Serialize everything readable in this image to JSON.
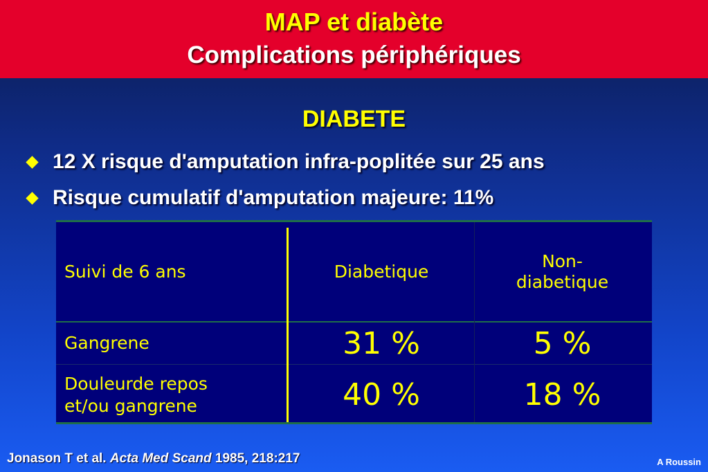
{
  "slide": {
    "title_line1": "MAP et diabète",
    "title_line2": "Complications périphériques",
    "subtitle": "DIABETE",
    "bullets": [
      "12 X risque d'amputation infra-poplitée sur 25 ans",
      "Risque cumulatif d'amputation majeure: 11%"
    ],
    "colors": {
      "header_bg": "#e4002b",
      "title_yellow": "#ffff00",
      "table_bg": "#00007a",
      "table_rule_green": "#1f6e48"
    }
  },
  "table": {
    "headers": [
      "Suivi de 6 ans",
      "Diabetique",
      "Non-\ndiabetique"
    ],
    "header_col3_line1": "Non-",
    "header_col3_line2": "diabetique",
    "rows": [
      {
        "label": "Gangrene",
        "diabetique": "31 %",
        "non_diabetique": "5 %"
      },
      {
        "label_line1": "Douleurde repos",
        "label_line2": "et/ou gangrene",
        "diabetique": "40 %",
        "non_diabetique": "18 %"
      }
    ]
  },
  "footer": {
    "ref_authors": "Jonason T et al. ",
    "ref_journal": "Acta Med Scand",
    "ref_details": " 1985, 218:217",
    "author": "A Roussin"
  }
}
